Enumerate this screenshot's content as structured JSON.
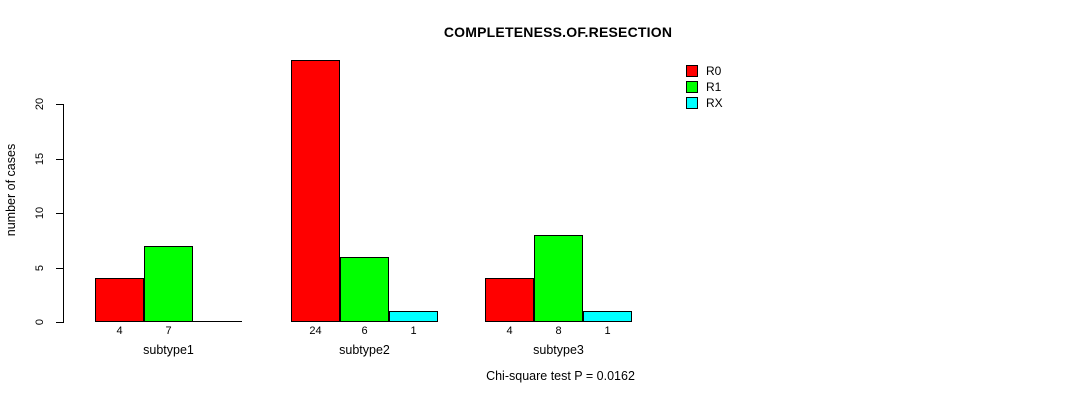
{
  "chart_data": {
    "type": "bar",
    "title": "COMPLETENESS.OF.RESECTION",
    "ylabel": "number of cases",
    "xlabel": "",
    "categories": [
      "subtype1",
      "subtype2",
      "subtype3"
    ],
    "series": [
      {
        "name": "R0",
        "color": "#ff0000",
        "values": [
          4,
          24,
          4
        ]
      },
      {
        "name": "R1",
        "color": "#00ff00",
        "values": [
          7,
          6,
          8
        ]
      },
      {
        "name": "RX",
        "color": "#00ffff",
        "values": [
          0,
          1,
          1
        ]
      }
    ],
    "bar_value_labels": [
      [
        "4",
        "7",
        ""
      ],
      [
        "24",
        "6",
        "1"
      ],
      [
        "4",
        "8",
        "1"
      ]
    ],
    "yticks": [
      "0",
      "5",
      "10",
      "15",
      "20"
    ],
    "ylim": [
      0,
      24
    ],
    "grid": false,
    "legend_position": "top-right",
    "annotation": "Chi-square test P = 0.0162",
    "bar_border_color": "#000000",
    "background_color": "#ffffff"
  }
}
